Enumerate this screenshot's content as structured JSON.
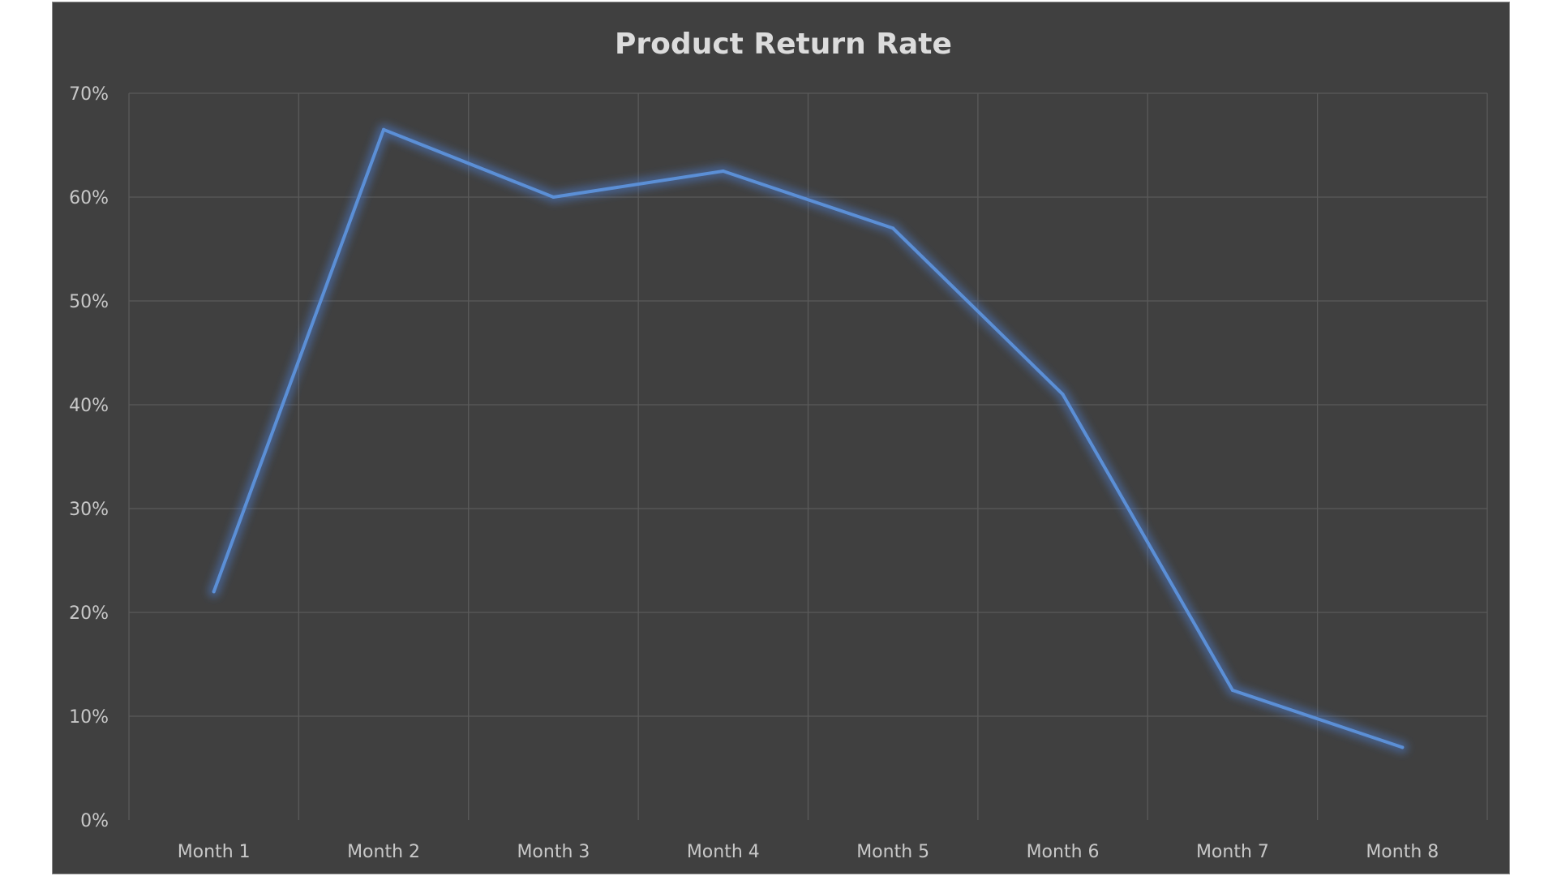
{
  "chart_data": {
    "type": "line",
    "title": "Product Return Rate",
    "xlabel": "",
    "ylabel": "",
    "categories": [
      "Month 1",
      "Month 2",
      "Month 3",
      "Month 4",
      "Month 5",
      "Month 6",
      "Month 7",
      "Month 8"
    ],
    "series": [
      {
        "values": [
          0.22,
          0.665,
          0.6,
          0.625,
          0.57,
          0.41,
          0.125,
          0.07
        ]
      }
    ],
    "ylim": [
      0,
      0.7
    ],
    "yticks": [
      0,
      0.1,
      0.2,
      0.3,
      0.4,
      0.5,
      0.6,
      0.7
    ],
    "ytick_labels": [
      "0%",
      "10%",
      "20%",
      "30%",
      "40%",
      "50%",
      "60%",
      "70%"
    ],
    "grid": true,
    "legend": "none",
    "colors": {
      "background": "#404040",
      "line": "#5b8fd6",
      "glow": "#4a7ac8"
    }
  }
}
